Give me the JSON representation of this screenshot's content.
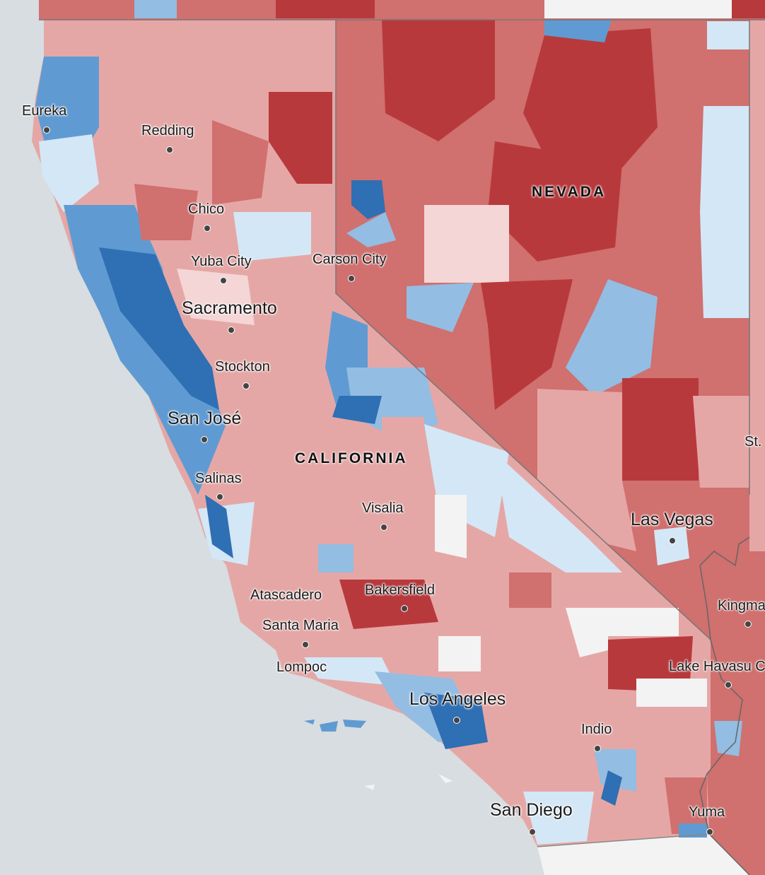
{
  "map": {
    "colors": {
      "ocean": "#d7dde0",
      "strong_rep": "#b8393c",
      "rep": "#d0706f",
      "lean_rep": "#e5a7a6",
      "tilt_rep": "#f3d6d5",
      "neutral": "#f3f3f3",
      "tilt_dem": "#d4e7f6",
      "lean_dem": "#93bde2",
      "dem": "#5f9bd2",
      "strong_dem": "#2f6fb3"
    },
    "states": [
      {
        "name": "NEVADA"
      },
      {
        "name": "CALIFORNIA"
      }
    ],
    "cities": [
      {
        "name": "Eureka"
      },
      {
        "name": "Redding"
      },
      {
        "name": "Chico"
      },
      {
        "name": "Yuba City"
      },
      {
        "name": "Carson City"
      },
      {
        "name": "Sacramento"
      },
      {
        "name": "Stockton"
      },
      {
        "name": "San José"
      },
      {
        "name": "Salinas"
      },
      {
        "name": "Visalia"
      },
      {
        "name": "Las Vegas"
      },
      {
        "name": "St."
      },
      {
        "name": "Atascadero"
      },
      {
        "name": "Bakersfield"
      },
      {
        "name": "Kingma"
      },
      {
        "name": "Santa Maria"
      },
      {
        "name": "Lompoc"
      },
      {
        "name": "Lake Havasu C"
      },
      {
        "name": "Los Angeles"
      },
      {
        "name": "Indio"
      },
      {
        "name": "San Diego"
      },
      {
        "name": "Yuma"
      }
    ]
  }
}
